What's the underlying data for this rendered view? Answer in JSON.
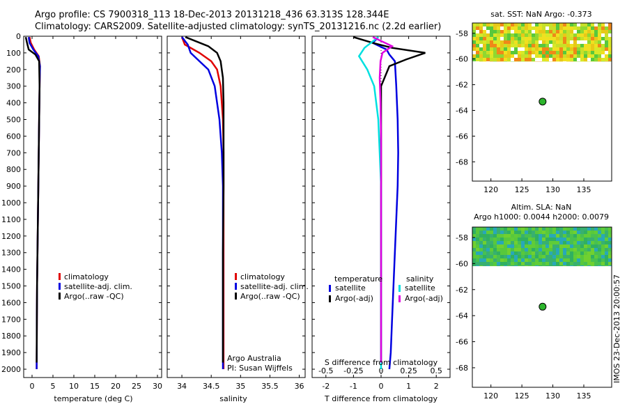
{
  "header": {
    "line1": "Argo profile: CS 7900318_113 18-Dec-2013 20131218_436 63.313S 128.344E",
    "line2": "Climatology: CARS2009. Satellite-adjusted climatology: synTS_20131216.nc (2.2d earlier)"
  },
  "colors": {
    "climatology": "#e00000",
    "satellite": "#0000e0",
    "argo": "#000000",
    "sal_satellite": "#00e0e0",
    "sal_argo": "#e000e0",
    "marker": "#2db52d"
  },
  "chart_data": [
    {
      "type": "line",
      "id": "temperature",
      "xlabel": "temperature (deg C)",
      "xlim": [
        -2,
        31
      ],
      "xticks": [
        0,
        5,
        10,
        15,
        20,
        25,
        30
      ],
      "xtick_labels": [
        "0",
        "5",
        "10",
        "15",
        "20",
        "25",
        "30"
      ],
      "ylim": [
        2050,
        0
      ],
      "yticks": [
        0,
        100,
        200,
        300,
        400,
        500,
        600,
        700,
        800,
        900,
        1000,
        1100,
        1200,
        1300,
        1400,
        1500,
        1600,
        1700,
        1800,
        1900,
        2000
      ],
      "ytick_labels": [
        "0",
        "100",
        "200",
        "300",
        "400",
        "500",
        "600",
        "700",
        "800",
        "900",
        "1000",
        "1100",
        "1200",
        "1300",
        "1400",
        "1500",
        "1600",
        "1700",
        "1800",
        "1900",
        "2000"
      ],
      "legend": [
        "climatology",
        "satellite-adj. clim.",
        "Argo(..raw -QC)"
      ],
      "series": [
        {
          "name": "climatology",
          "color_key": "climatology",
          "x": [
            -0.6,
            -0.3,
            0.5,
            1.6,
            1.9,
            1.8,
            1.7,
            1.6,
            1.5,
            1.4,
            1.3,
            1.2,
            1.15,
            1.1
          ],
          "y": [
            5,
            40,
            80,
            120,
            180,
            300,
            500,
            700,
            900,
            1100,
            1300,
            1500,
            1700,
            2000
          ]
        },
        {
          "name": "satellite-adj. clim.",
          "color_key": "satellite",
          "x": [
            -0.8,
            -0.6,
            0.3,
            1.5,
            1.9,
            1.8,
            1.7,
            1.6,
            1.5,
            1.4,
            1.3,
            1.2,
            1.15,
            1.1
          ],
          "y": [
            5,
            40,
            80,
            120,
            180,
            300,
            500,
            700,
            900,
            1100,
            1300,
            1500,
            1700,
            2000
          ]
        },
        {
          "name": "Argo(..raw -QC)",
          "color_key": "argo",
          "x": [
            -1.5,
            -1.2,
            -0.8,
            0.8,
            1.7,
            1.8,
            1.7,
            1.6,
            1.5,
            1.4,
            1.3,
            1.2,
            1.15,
            1.1
          ],
          "y": [
            5,
            40,
            80,
            110,
            150,
            300,
            500,
            700,
            900,
            1100,
            1300,
            1500,
            1700,
            1960
          ]
        }
      ]
    },
    {
      "type": "line",
      "id": "salinity",
      "xlabel": "salinity",
      "xlim": [
        33.75,
        36.1
      ],
      "xticks": [
        34,
        34.5,
        35,
        35.5,
        36
      ],
      "xtick_labels": [
        "34",
        "34.5",
        "35",
        "35.5",
        "36"
      ],
      "ylim": [
        2050,
        0
      ],
      "legend": [
        "climatology",
        "satellite-adj. clim.",
        "Argo(..raw -QC)"
      ],
      "annotation": [
        "Argo Australia",
        "PI: Susan Wijffels"
      ],
      "series": [
        {
          "name": "climatology",
          "color_key": "climatology",
          "x": [
            34.0,
            34.05,
            34.3,
            34.5,
            34.6,
            34.66,
            34.7,
            34.71,
            34.71,
            34.71,
            34.71,
            34.71,
            34.71
          ],
          "y": [
            5,
            50,
            100,
            150,
            200,
            300,
            500,
            700,
            900,
            1100,
            1300,
            1600,
            2000
          ]
        },
        {
          "name": "satellite-adj. clim.",
          "color_key": "satellite",
          "x": [
            34.0,
            34.1,
            34.15,
            34.3,
            34.45,
            34.56,
            34.64,
            34.68,
            34.7,
            34.7,
            34.7,
            34.7,
            34.7
          ],
          "y": [
            5,
            50,
            100,
            150,
            200,
            300,
            500,
            700,
            900,
            1100,
            1300,
            1600,
            2000
          ]
        },
        {
          "name": "Argo(..raw -QC)",
          "color_key": "argo",
          "x": [
            34.06,
            34.45,
            34.6,
            34.66,
            34.7,
            34.71,
            34.71,
            34.71,
            34.7,
            34.7,
            34.7
          ],
          "y": [
            5,
            60,
            100,
            150,
            250,
            400,
            600,
            900,
            1300,
            1600,
            1960
          ]
        }
      ]
    },
    {
      "type": "line",
      "id": "differences",
      "xlabel": "T difference from climatology",
      "x2label": "S difference from climatology",
      "xlim": [
        -2.5,
        2.5
      ],
      "xticks": [
        -2,
        -1,
        0,
        1,
        2
      ],
      "xtick_labels": [
        "-2",
        "-1",
        "0",
        "1",
        "2"
      ],
      "x2ticks": [
        -0.5,
        -0.25,
        0,
        0.25,
        0.5
      ],
      "x2tick_labels": [
        "-0.5",
        "-0.25",
        "0",
        "0.25",
        "0.5"
      ],
      "ylim": [
        2050,
        0
      ],
      "legend_groups": [
        {
          "title": "temperature",
          "items": [
            "satellite",
            "Argo(-adj)"
          ]
        },
        {
          "title": "salinity",
          "items": [
            "satellite",
            "Argo(-adj)"
          ]
        }
      ],
      "series": [
        {
          "name": "satellite",
          "group": "temperature",
          "color_key": "satellite",
          "x": [
            -0.1,
            -0.3,
            0.2,
            0.3,
            0.5,
            0.55,
            0.6,
            0.62,
            0.6,
            0.55,
            0.5,
            0.45,
            0.4,
            0.35,
            0.3
          ],
          "y": [
            5,
            40,
            80,
            110,
            150,
            300,
            500,
            700,
            900,
            1100,
            1300,
            1500,
            1700,
            1900,
            2000
          ]
        },
        {
          "name": "Argo(-adj)",
          "group": "temperature",
          "color_key": "argo",
          "x": [
            -1.0,
            -0.3,
            0.4,
            1.6,
            0.9,
            0.3,
            0.0,
            0.0,
            0.0,
            0.0,
            0.0,
            0.0,
            0.0,
            0.0
          ],
          "y": [
            5,
            40,
            70,
            100,
            140,
            180,
            300,
            500,
            800,
            1100,
            1400,
            1700,
            1900,
            1960
          ]
        },
        {
          "name": "satellite",
          "group": "salinity",
          "color_key": "sal_satellite",
          "x": [
            -0.1,
            -0.6,
            -0.8,
            -0.5,
            -0.25,
            -0.1,
            -0.05,
            0,
            0,
            0,
            0,
            0
          ],
          "y": [
            5,
            70,
            120,
            200,
            300,
            500,
            700,
            900,
            1100,
            1400,
            1700,
            2000
          ]
        },
        {
          "name": "Argo(-adj)",
          "group": "salinity",
          "color_key": "sal_argo",
          "x": [
            -0.3,
            0.4,
            0.05,
            -0.02,
            -0.05,
            -0.02,
            0,
            0,
            0,
            0,
            0
          ],
          "y": [
            5,
            60,
            100,
            150,
            250,
            400,
            600,
            900,
            1300,
            1700,
            1960
          ]
        }
      ]
    },
    {
      "type": "heatmap",
      "id": "sst_map",
      "title": "sat. SST: NaN Argo: -0.373",
      "xlim": [
        117,
        139.5
      ],
      "ylim": [
        -69.5,
        -57.2
      ],
      "xticks": [
        120,
        125,
        130,
        135
      ],
      "xtick_labels": [
        "120",
        "125",
        "130",
        "135"
      ],
      "yticks": [
        -58,
        -60,
        -62,
        -64,
        -66,
        -68
      ],
      "ytick_labels": [
        "-58",
        "-60",
        "-62",
        "-64",
        "-66",
        "-68"
      ],
      "data_extent_lat": [
        -60.2,
        -57.2
      ],
      "argo_position": {
        "lon": 128.344,
        "lat": -63.313
      }
    },
    {
      "type": "heatmap",
      "id": "sla_map",
      "title": "Altim. SLA: NaN",
      "subtitle": "Argo h1000: 0.0044 h2000: 0.0079",
      "xlim": [
        117,
        139.5
      ],
      "ylim": [
        -69.5,
        -57.2
      ],
      "xticks": [
        120,
        125,
        130,
        135
      ],
      "xtick_labels": [
        "120",
        "125",
        "130",
        "135"
      ],
      "yticks": [
        -58,
        -60,
        -62,
        -64,
        -66,
        -68
      ],
      "ytick_labels": [
        "-58",
        "-60",
        "-62",
        "-64",
        "-66",
        "-68"
      ],
      "data_extent_lat": [
        -60.2,
        -57.2
      ],
      "argo_position": {
        "lon": 128.344,
        "lat": -63.313
      }
    }
  ],
  "footer_vertical": "IMOS 23-Dec-2013 20:00:57"
}
